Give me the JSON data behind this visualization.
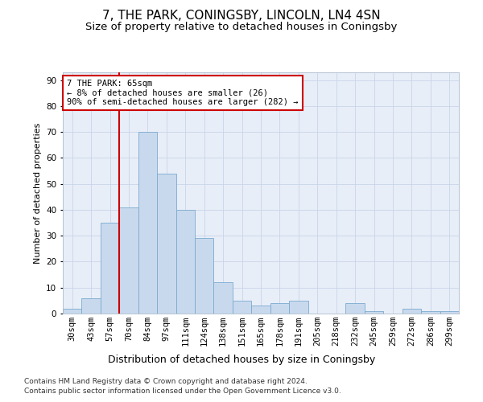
{
  "title": "7, THE PARK, CONINGSBY, LINCOLN, LN4 4SN",
  "subtitle": "Size of property relative to detached houses in Coningsby",
  "xlabel": "Distribution of detached houses by size in Coningsby",
  "ylabel": "Number of detached properties",
  "categories": [
    "30sqm",
    "43sqm",
    "57sqm",
    "70sqm",
    "84sqm",
    "97sqm",
    "111sqm",
    "124sqm",
    "138sqm",
    "151sqm",
    "165sqm",
    "178sqm",
    "191sqm",
    "205sqm",
    "218sqm",
    "232sqm",
    "245sqm",
    "259sqm",
    "272sqm",
    "286sqm",
    "299sqm"
  ],
  "values": [
    2,
    6,
    35,
    41,
    70,
    54,
    40,
    29,
    12,
    5,
    3,
    4,
    5,
    0,
    0,
    4,
    1,
    0,
    2,
    1,
    1
  ],
  "bar_color": "#c9d9ed",
  "bar_edge_color": "#7aaacf",
  "grid_color": "#c8d4e8",
  "background_color": "#e8eef8",
  "vline_x": 2.5,
  "vline_color": "#cc0000",
  "annotation_line1": "7 THE PARK: 65sqm",
  "annotation_line2": "← 8% of detached houses are smaller (26)",
  "annotation_line3": "90% of semi-detached houses are larger (282) →",
  "annotation_box_color": "#ffffff",
  "annotation_box_edge": "#cc0000",
  "ylim": [
    0,
    93
  ],
  "yticks": [
    0,
    10,
    20,
    30,
    40,
    50,
    60,
    70,
    80,
    90
  ],
  "footer1": "Contains HM Land Registry data © Crown copyright and database right 2024.",
  "footer2": "Contains public sector information licensed under the Open Government Licence v3.0.",
  "title_fontsize": 11,
  "subtitle_fontsize": 9.5,
  "xlabel_fontsize": 9,
  "ylabel_fontsize": 8,
  "tick_fontsize": 7.5,
  "annotation_fontsize": 7.5,
  "footer_fontsize": 6.5
}
